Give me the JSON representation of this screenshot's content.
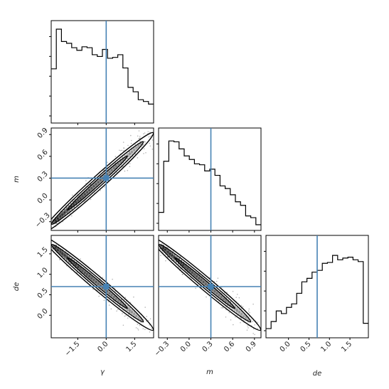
{
  "chart_data": {
    "type": "corner",
    "parameters": [
      "γ",
      "m",
      "de"
    ],
    "truths": {
      "γ": 0.0,
      "m": 0.3,
      "de": 0.7
    },
    "ranges": {
      "γ": [
        -2.9,
        2.5
      ],
      "m": [
        -0.42,
        0.99
      ],
      "de": [
        -0.55,
        1.95
      ]
    },
    "ticks": {
      "γ": [
        "−1.5",
        "0.0",
        "1.5"
      ],
      "m": [
        "−0.3",
        "0.0",
        "0.3",
        "0.6",
        "0.9"
      ],
      "de": [
        "0.0",
        "0.5",
        "1.0",
        "1.5"
      ]
    },
    "tick_values": {
      "γ": [
        -1.5,
        0.0,
        1.5
      ],
      "m": [
        -0.3,
        0.0,
        0.3,
        0.6,
        0.9
      ],
      "de": [
        0.0,
        0.5,
        1.0,
        1.5
      ]
    },
    "histograms": {
      "γ": [
        0.55,
        1.0,
        0.86,
        0.84,
        0.79,
        0.76,
        0.8,
        0.79,
        0.71,
        0.69,
        0.77,
        0.67,
        0.68,
        0.71,
        0.56,
        0.34,
        0.29,
        0.2,
        0.18,
        0.15
      ],
      "m": [
        0.14,
        0.72,
        0.95,
        0.94,
        0.86,
        0.78,
        0.74,
        0.69,
        0.68,
        0.61,
        0.63,
        0.56,
        0.44,
        0.41,
        0.34,
        0.26,
        0.22,
        0.1,
        0.08,
        0.0
      ],
      "de": [
        0.04,
        0.12,
        0.24,
        0.21,
        0.28,
        0.32,
        0.44,
        0.57,
        0.61,
        0.68,
        0.7,
        0.78,
        0.79,
        0.87,
        0.82,
        0.84,
        0.85,
        0.82,
        0.8,
        0.1
      ]
    },
    "correlations": {
      "m_vs_γ": "strong positive",
      "de_vs_γ": "strong negative",
      "de_vs_m": "strong negative"
    },
    "grid": false,
    "legend": "none"
  }
}
